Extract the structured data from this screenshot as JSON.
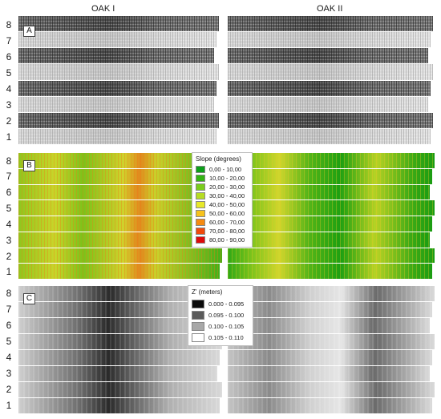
{
  "columns": [
    "OAK I",
    "OAK II"
  ],
  "panels": [
    {
      "label": "A",
      "rows": [
        "8",
        "7",
        "6",
        "5",
        "4",
        "3",
        "2",
        "1"
      ]
    },
    {
      "label": "B",
      "rows": [
        "8",
        "7",
        "6",
        "5",
        "4",
        "3",
        "2",
        "1"
      ],
      "legend": {
        "title": "Slope (degrees)",
        "items": [
          {
            "label": "0,00 - 10,00",
            "color": "#0ca01a"
          },
          {
            "label": "10,00 - 20,00",
            "color": "#33b414"
          },
          {
            "label": "20,00 - 30,00",
            "color": "#7acd1b"
          },
          {
            "label": "30,00 - 40,00",
            "color": "#b6dc23"
          },
          {
            "label": "40,00 - 50,00",
            "color": "#e7e82a"
          },
          {
            "label": "50,00 - 60,00",
            "color": "#f7c21c"
          },
          {
            "label": "60,00 - 70,00",
            "color": "#f58a12"
          },
          {
            "label": "70,00 - 80,00",
            "color": "#f04a0c"
          },
          {
            "label": "80,00 - 90,00",
            "color": "#dd0b0b"
          }
        ]
      }
    },
    {
      "label": "C",
      "rows": [
        "8",
        "7",
        "6",
        "5",
        "4",
        "3",
        "2",
        "1"
      ],
      "legend": {
        "title": "Z' (meters)",
        "items": [
          {
            "label": "0.000 - 0.095",
            "color": "#0a0a0a"
          },
          {
            "label": "0.095 - 0.100",
            "color": "#5a5a5a"
          },
          {
            "label": "0.100 - 0.105",
            "color": "#a8a8a8"
          },
          {
            "label": "0.105 - 0.110",
            "color": "#ffffff"
          }
        ]
      }
    }
  ]
}
